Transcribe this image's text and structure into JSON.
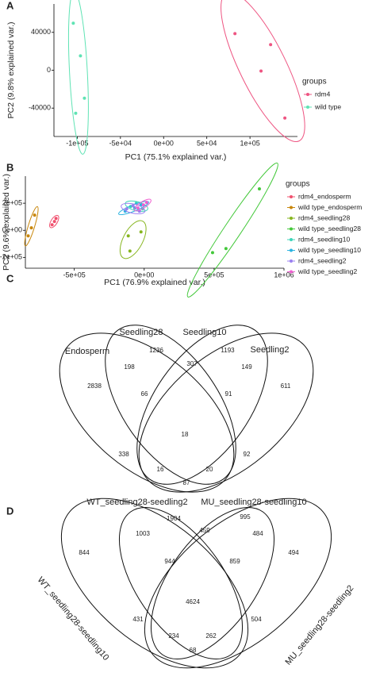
{
  "chart_data": [
    {
      "type": "scatter",
      "label": "A",
      "xlabel": "PC1 (75.1% explained var.)",
      "ylabel": "PC2 (9.8% explained var.)",
      "xlim": [
        -127000,
        155000
      ],
      "ylim": [
        -70000,
        70000
      ],
      "xticks": [
        {
          "value": -100000,
          "label": "-1e+05"
        },
        {
          "value": -50000,
          "label": "-5e+04"
        },
        {
          "value": 0,
          "label": "0e+00"
        },
        {
          "value": 50000,
          "label": "5e+04"
        },
        {
          "value": 100000,
          "label": "1e+05"
        }
      ],
      "yticks": [
        -40000,
        0,
        40000
      ],
      "legend_title": "groups",
      "series": [
        {
          "name": "rdm4",
          "color": "#ee5582",
          "x": [
            82600,
            123900,
            112800,
            140400
          ],
          "values": [
            38700,
            27000,
            -800,
            -50500
          ]
        },
        {
          "name": "wild type",
          "color": "#5fe3b4",
          "x": [
            -104600,
            -96300,
            -91700,
            -101800
          ],
          "values": [
            49700,
            15200,
            -29500,
            -45500
          ]
        }
      ]
    },
    {
      "type": "scatter",
      "label": "B",
      "xlabel": "PC1 (76.9% explained var.)",
      "ylabel": "PC2 (9.6% explained var.)",
      "xlim": [
        -850000,
        1000000
      ],
      "ylim": [
        -280000,
        400000
      ],
      "xticks": [
        {
          "value": -500000,
          "label": "-5e+05"
        },
        {
          "value": 0,
          "label": "0e+00"
        },
        {
          "value": 500000,
          "label": "5e+05"
        },
        {
          "value": 1000000,
          "label": "1e+06"
        }
      ],
      "yticks": [
        {
          "value": -200000,
          "label": "-2e+05"
        },
        {
          "value": 0,
          "label": "0e+00"
        },
        {
          "value": 200000,
          "label": "2e+05"
        }
      ],
      "legend_title": "groups",
      "series": [
        {
          "name": "rdm4_endosperm",
          "color": "#f0506e",
          "x": [
            -659000,
            -642000,
            -631000
          ],
          "values": [
            41000,
            65000,
            88000
          ]
        },
        {
          "name": "wild type_endosperm",
          "color": "#c8860a",
          "x": [
            -830000,
            -807000,
            -784000
          ],
          "values": [
            -41000,
            18000,
            112000
          ]
        },
        {
          "name": "rdm4_seedling28",
          "color": "#86b51e",
          "x": [
            -114000,
            -23000,
            -102000
          ],
          "values": [
            -41000,
            -12000,
            -153000
          ]
        },
        {
          "name": "wild type_seedling28",
          "color": "#43c83a",
          "x": [
            489000,
            585000,
            824000
          ],
          "values": [
            -165000,
            -135000,
            306000
          ]
        },
        {
          "name": "rdm4_seedling10",
          "color": "#3cd4b8",
          "x": [
            -97000,
            -57000,
            -11000
          ],
          "values": [
            176000,
            200000,
            159000
          ]
        },
        {
          "name": "wild type_seedling10",
          "color": "#2ab3e0",
          "x": [
            -136000,
            -68000,
            -23000
          ],
          "values": [
            141000,
            165000,
            188000
          ]
        },
        {
          "name": "rdm4_seedling2",
          "color": "#9a7ff0",
          "x": [
            -125000,
            -80000,
            -34000
          ],
          "values": [
            159000,
            182000,
            141000
          ]
        },
        {
          "name": "wild type_seedling2",
          "color": "#ee5fd0",
          "x": [
            -45000,
            -6000,
            17000
          ],
          "values": [
            165000,
            188000,
            206000
          ]
        }
      ]
    },
    {
      "type": "venn",
      "label": "C",
      "sets": [
        "Endosperm",
        "Seedling28",
        "Seedling10",
        "Seedling2"
      ],
      "values": [
        1236,
        1193,
        198,
        307,
        149,
        2838,
        611,
        66,
        91,
        18,
        338,
        92,
        16,
        20,
        87
      ]
    },
    {
      "type": "venn",
      "label": "D",
      "sets": [
        "WT_seedling28-seedling10",
        "WT_seedling28-seedling2",
        "MU_seedling28-seedling10",
        "MU_seedling28-seedling2"
      ],
      "values": [
        1904,
        995,
        1003,
        459,
        484,
        844,
        494,
        944,
        859,
        4624,
        431,
        504,
        234,
        262,
        68
      ]
    }
  ]
}
